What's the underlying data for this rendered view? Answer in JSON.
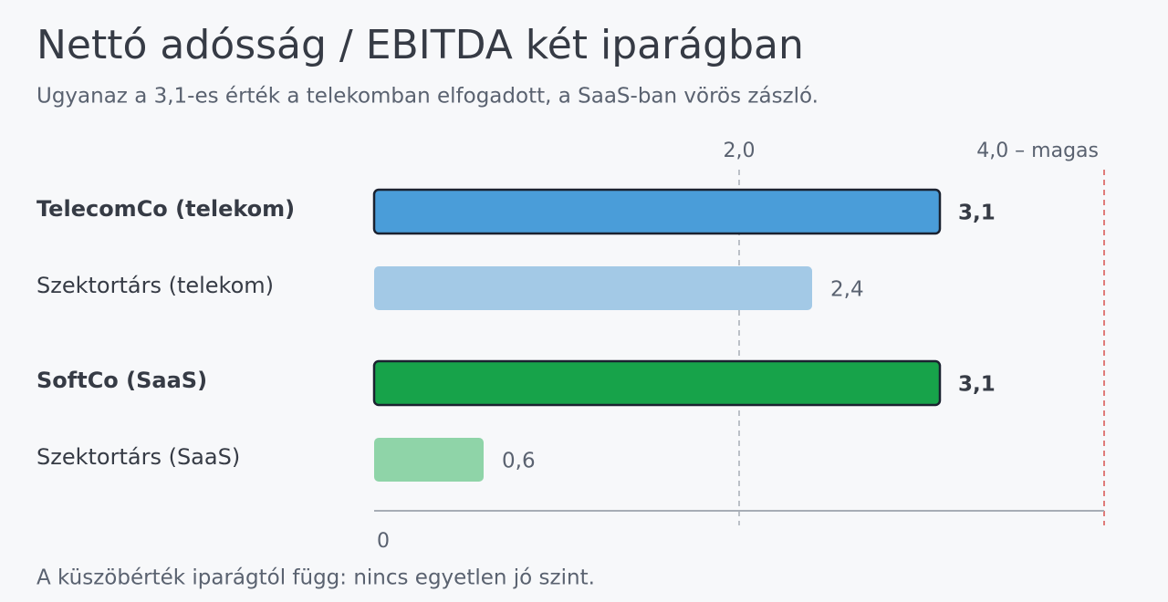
{
  "chart_data": {
    "type": "bar",
    "orientation": "horizontal",
    "title": "Nettó adósság / EBITDA két iparágban",
    "subtitle": "Ugyanaz a 3,1-es érték a telekomban elfogadott, a SaaS-ban vörös zászló.",
    "categories": [
      "TelecomCo (telekom)",
      "Szektortárs (telekom)",
      "SoftCo (SaaS)",
      "Szektortárs (SaaS)"
    ],
    "values": [
      3.1,
      2.4,
      3.1,
      0.6
    ],
    "value_labels": [
      "3,1",
      "2,4",
      "3,1",
      "0,6"
    ],
    "colors": [
      "#4a9dd9",
      "#a3c9e6",
      "#17a34a",
      "#8fd4a8"
    ],
    "highlighted": [
      true,
      false,
      true,
      false
    ],
    "xlim": [
      0,
      4
    ],
    "xticks": [
      0,
      {
        "value": 2,
        "label": "2,0"
      },
      {
        "value": 4,
        "label": "4,0 – magas"
      }
    ],
    "grid": true,
    "note": "A küszöbérték iparágtól függ: nincs egyetlen jó szint."
  }
}
